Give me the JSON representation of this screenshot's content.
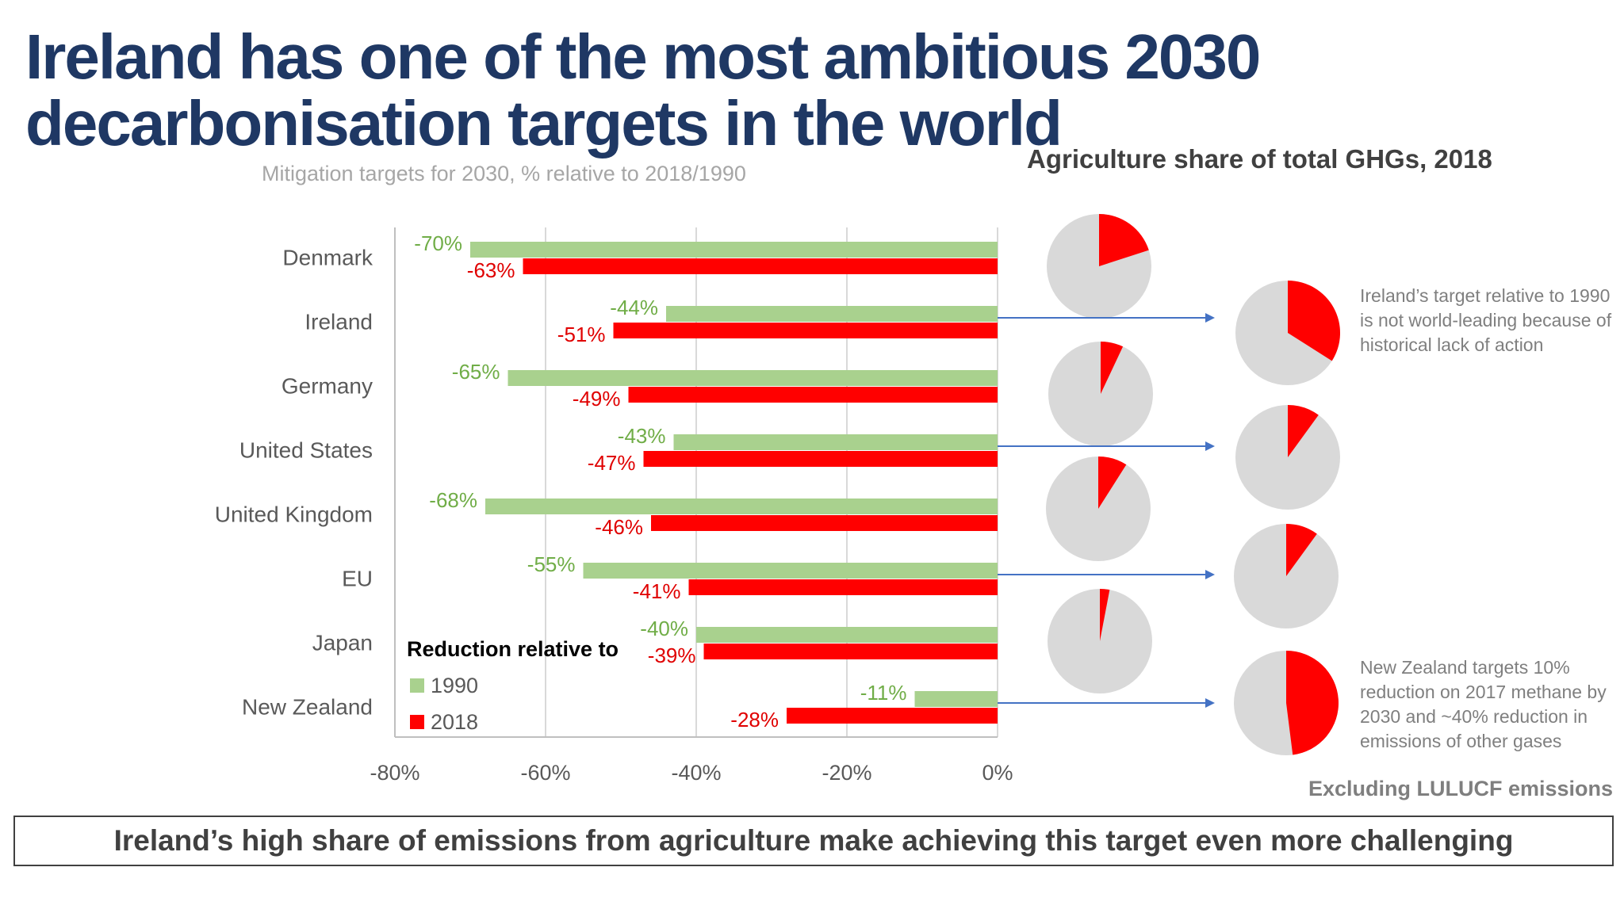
{
  "title": "Ireland has one of the most ambitious 2030 decarbonisation targets in the world",
  "bottom_message": "Ireland’s high share of emissions from agriculture make achieving this target even more challenging",
  "colors": {
    "series_1990": "#a9d18e",
    "series_2018": "#ff0000",
    "label_1990": "#70ad47",
    "label_2018": "#e00000",
    "pie_base": "#d9d9d9",
    "arrow": "#4472c4",
    "title": "#1f3864"
  },
  "chart_data": [
    {
      "type": "bar",
      "orientation": "horizontal",
      "title": "Mitigation targets for 2030, % relative to 2018/1990",
      "categories": [
        "Denmark",
        "Ireland",
        "Germany",
        "United States",
        "United Kingdom",
        "EU",
        "Japan",
        "New Zealand"
      ],
      "series": [
        {
          "name": "1990",
          "values": [
            -70,
            -44,
            -65,
            -43,
            -68,
            -55,
            -40,
            -11
          ],
          "labels": [
            "-70%",
            "-44%",
            "-65%",
            "-43%",
            "-68%",
            "-55%",
            "-40%",
            "-11%"
          ]
        },
        {
          "name": "2018",
          "values": [
            -63,
            -51,
            -49,
            -47,
            -46,
            -41,
            -39,
            -28
          ],
          "labels": [
            "-63%",
            "-51%",
            "-49%",
            "-47%",
            "-46%",
            "-41%",
            "-39%",
            "-28%"
          ]
        }
      ],
      "xlim": [
        -80,
        0
      ],
      "xticks": [
        "-80%",
        "-60%",
        "-40%",
        "-20%",
        "0%"
      ],
      "grid": true,
      "legend": {
        "title": "Reduction relative to",
        "position": "bottom-left"
      }
    },
    {
      "type": "pie",
      "title": "Agriculture share of total GHGs, 2018",
      "categories": [
        "Denmark",
        "Ireland",
        "Germany",
        "United States",
        "United Kingdom",
        "EU",
        "Japan",
        "New Zealand"
      ],
      "agriculture_share": [
        0.2,
        0.34,
        0.07,
        0.1,
        0.09,
        0.1,
        0.03,
        0.48
      ]
    }
  ],
  "notes": {
    "ireland": "Ireland’s target relative to 1990 is not world-leading because of historical lack of action",
    "new_zealand": "New Zealand targets 10% reduction on 2017 methane by 2030 and ~40% reduction in emissions of other gases",
    "footnote": "Excluding LULUCF emissions"
  }
}
